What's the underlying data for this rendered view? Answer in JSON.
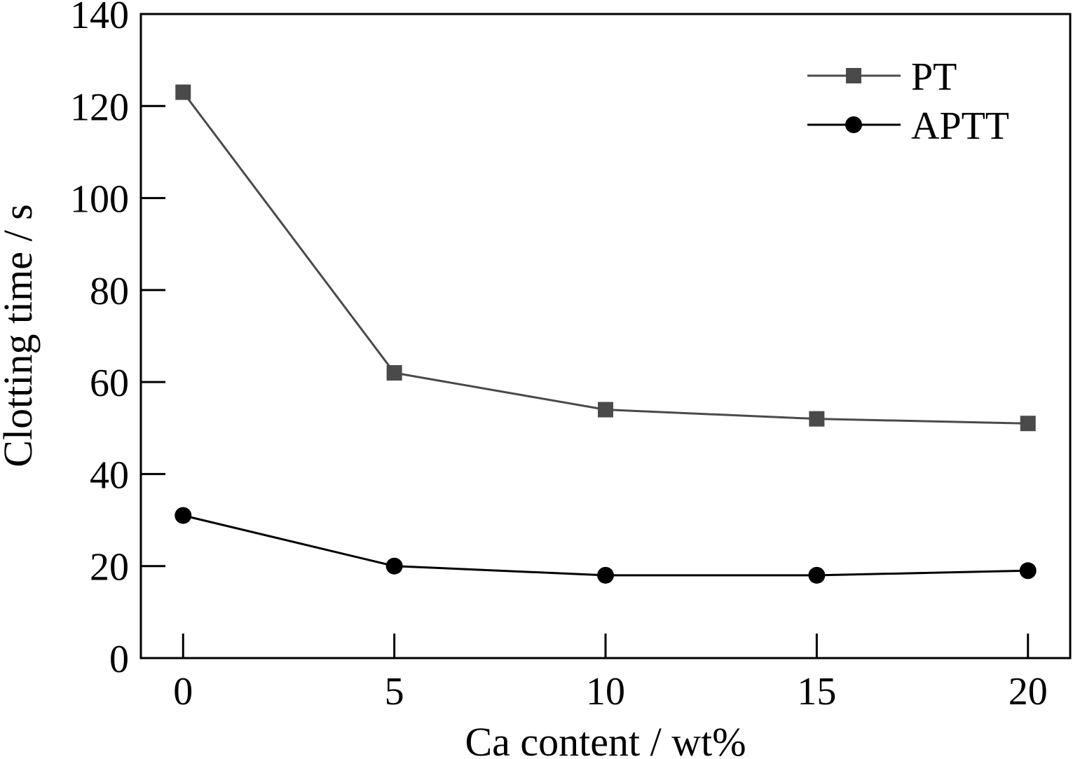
{
  "chart_data": {
    "type": "line",
    "title": "",
    "xlabel": "Ca content / wt%",
    "ylabel": "Clotting time / s",
    "x": [
      0,
      5,
      10,
      15,
      20
    ],
    "xlim": [
      -1,
      21
    ],
    "ylim": [
      0,
      140
    ],
    "xticks": [
      "0",
      "5",
      "10",
      "15",
      "20"
    ],
    "yticks": [
      "0",
      "20",
      "40",
      "60",
      "80",
      "100",
      "120",
      "140"
    ],
    "grid": false,
    "legend_position": "top-right",
    "series": [
      {
        "name": "PT",
        "marker": "square",
        "color": "#4a4a4a",
        "values": [
          123,
          62,
          54,
          52,
          51
        ]
      },
      {
        "name": "APTT",
        "marker": "circle",
        "color": "#000000",
        "values": [
          31,
          20,
          18,
          18,
          19
        ]
      }
    ]
  }
}
